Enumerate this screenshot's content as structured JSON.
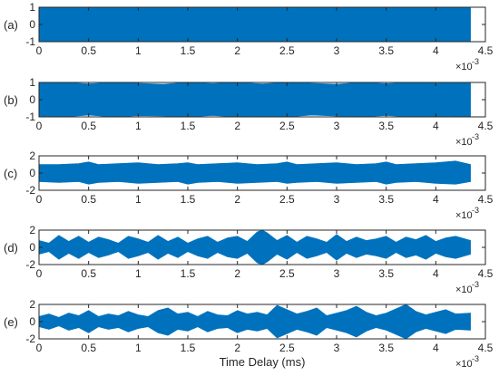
{
  "colors": {
    "signal": "#0072BD",
    "axis": "#262626",
    "background": "#ffffff"
  },
  "chart_data": {
    "type": "area",
    "xlabel": "Time Delay (ms)",
    "x_exponent_label": "×10",
    "x_exponent_power": "-3",
    "xlim": [
      0,
      4.5
    ],
    "x_ticks": [
      0,
      0.5,
      1,
      1.5,
      2,
      2.5,
      3,
      3.5,
      4,
      4.5
    ],
    "x_tick_labels": [
      "0",
      "0.5",
      "1",
      "1.5",
      "2",
      "2.5",
      "3",
      "3.5",
      "4",
      "4.5"
    ],
    "signal_end": 4.35,
    "panels": [
      {
        "label": "(a)",
        "ylim": [
          -1,
          1
        ],
        "y_ticks": [
          -1,
          0,
          1
        ],
        "y_tick_labels": [
          "-1",
          "0",
          "1"
        ],
        "envelope": {
          "x": [
            0,
            0.5,
            1,
            1.5,
            2,
            2.5,
            3,
            3.5,
            4,
            4.35
          ],
          "upper": [
            1,
            1,
            1,
            1,
            1,
            1,
            1,
            1,
            1,
            1
          ],
          "lower": [
            -1,
            -1,
            -1,
            -1,
            -1,
            -1,
            -1,
            -1,
            -1,
            -1
          ]
        }
      },
      {
        "label": "(b)",
        "ylim": [
          -1,
          1
        ],
        "y_ticks": [
          -1,
          0,
          1
        ],
        "y_tick_labels": [
          "-1",
          "0",
          "1"
        ],
        "envelope": {
          "x": [
            0,
            0.25,
            0.5,
            0.75,
            1,
            1.25,
            1.5,
            1.75,
            2,
            2.25,
            2.5,
            2.75,
            3,
            3.25,
            3.5,
            3.75,
            4,
            4.35
          ],
          "upper": [
            0.95,
            1.0,
            0.92,
            1.0,
            0.95,
            0.9,
            1.0,
            0.94,
            1.0,
            0.92,
            1.0,
            0.95,
            0.9,
            1.0,
            0.93,
            1.0,
            0.95,
            1.0
          ],
          "lower": [
            -0.95,
            -1.0,
            -0.9,
            -1.0,
            -0.93,
            -0.95,
            -1.0,
            -0.92,
            -1.0,
            -0.95,
            -1.0,
            -0.9,
            -0.95,
            -1.0,
            -0.92,
            -1.0,
            -0.95,
            -1.0
          ]
        }
      },
      {
        "label": "(c)",
        "ylim": [
          -2,
          2
        ],
        "y_ticks": [
          -2,
          0,
          2
        ],
        "y_tick_labels": [
          "-2",
          "0",
          "2"
        ],
        "envelope": {
          "x": [
            0,
            0.2,
            0.4,
            0.5,
            0.6,
            0.8,
            1,
            1.2,
            1.4,
            1.5,
            1.6,
            1.8,
            2,
            2.2,
            2.4,
            2.5,
            2.6,
            2.8,
            3,
            3.2,
            3.4,
            3.5,
            3.6,
            3.8,
            4,
            4.2,
            4.35
          ],
          "upper": [
            1.0,
            1.0,
            1.1,
            1.3,
            1.0,
            1.1,
            1.2,
            1.0,
            1.1,
            1.2,
            1.0,
            1.1,
            1.2,
            1.0,
            1.1,
            1.3,
            1.0,
            1.1,
            1.2,
            1.0,
            1.1,
            1.3,
            1.0,
            1.1,
            1.2,
            1.4,
            1.0
          ],
          "lower": [
            -1.0,
            -1.1,
            -1.0,
            -1.3,
            -1.1,
            -1.0,
            -1.2,
            -1.1,
            -1.0,
            -1.3,
            -1.1,
            -1.0,
            -1.2,
            -1.1,
            -1.0,
            -1.2,
            -1.1,
            -1.0,
            -1.2,
            -1.1,
            -1.0,
            -1.3,
            -1.1,
            -1.0,
            -1.2,
            -1.3,
            -1.0
          ]
        }
      },
      {
        "label": "(d)",
        "ylim": [
          -2,
          2
        ],
        "y_ticks": [
          -2,
          0,
          2
        ],
        "y_tick_labels": [
          "-2",
          "0",
          "2"
        ],
        "envelope": {
          "x": [
            0,
            0.1,
            0.2,
            0.3,
            0.4,
            0.5,
            0.6,
            0.7,
            0.8,
            0.9,
            1,
            1.1,
            1.2,
            1.3,
            1.4,
            1.5,
            1.6,
            1.7,
            1.8,
            1.9,
            2,
            2.1,
            2.2,
            2.25,
            2.3,
            2.4,
            2.5,
            2.6,
            2.7,
            2.8,
            2.9,
            3,
            3.1,
            3.2,
            3.3,
            3.4,
            3.5,
            3.6,
            3.7,
            3.8,
            3.9,
            4,
            4.1,
            4.2,
            4.35
          ],
          "upper": [
            0.8,
            0.5,
            1.4,
            0.7,
            1.3,
            0.6,
            1.2,
            0.9,
            0.5,
            1.3,
            1.0,
            0.6,
            1.4,
            0.7,
            1.2,
            0.5,
            1.0,
            1.3,
            0.6,
            1.1,
            1.3,
            0.7,
            1.8,
            2.0,
            1.7,
            0.8,
            1.4,
            0.6,
            1.3,
            1.0,
            0.6,
            1.5,
            0.7,
            1.2,
            0.8,
            1.0,
            1.3,
            0.6,
            1.2,
            0.9,
            1.4,
            0.7,
            1.1,
            1.3,
            0.8
          ],
          "lower": [
            -0.8,
            -0.5,
            -1.4,
            -0.7,
            -1.3,
            -0.6,
            -1.2,
            -0.9,
            -0.5,
            -1.3,
            -1.0,
            -0.6,
            -1.4,
            -0.7,
            -1.2,
            -0.5,
            -1.0,
            -1.3,
            -0.6,
            -1.1,
            -1.3,
            -0.7,
            -1.8,
            -2.0,
            -1.7,
            -0.8,
            -1.4,
            -0.6,
            -1.3,
            -1.0,
            -0.6,
            -1.5,
            -0.7,
            -1.2,
            -0.8,
            -1.0,
            -1.3,
            -0.6,
            -1.2,
            -0.9,
            -1.4,
            -0.7,
            -1.1,
            -1.3,
            -0.8
          ]
        }
      },
      {
        "label": "(e)",
        "ylim": [
          -2,
          2
        ],
        "y_ticks": [
          -2,
          0,
          2
        ],
        "y_tick_labels": [
          "-2",
          "0",
          "2"
        ],
        "envelope": {
          "x": [
            0,
            0.1,
            0.2,
            0.3,
            0.4,
            0.5,
            0.6,
            0.7,
            0.8,
            0.9,
            1,
            1.1,
            1.2,
            1.3,
            1.4,
            1.5,
            1.6,
            1.7,
            1.8,
            1.9,
            2,
            2.1,
            2.2,
            2.3,
            2.4,
            2.5,
            2.6,
            2.7,
            2.8,
            2.9,
            3,
            3.1,
            3.2,
            3.3,
            3.4,
            3.5,
            3.6,
            3.7,
            3.8,
            3.9,
            4,
            4.1,
            4.2,
            4.35
          ],
          "upper": [
            0.6,
            0.9,
            0.5,
            1.0,
            0.7,
            1.3,
            0.6,
            0.9,
            0.7,
            1.2,
            0.8,
            0.6,
            1.3,
            1.6,
            0.9,
            1.1,
            0.6,
            1.2,
            0.8,
            0.7,
            1.3,
            0.9,
            1.1,
            0.8,
            1.9,
            1.4,
            0.9,
            1.2,
            1.6,
            0.7,
            1.0,
            1.3,
            1.8,
            1.1,
            0.7,
            1.0,
            1.5,
            2.0,
            1.2,
            0.8,
            1.1,
            1.4,
            0.9,
            1.0
          ],
          "lower": [
            -0.6,
            -0.9,
            -0.5,
            -1.0,
            -0.7,
            -1.3,
            -0.6,
            -0.9,
            -0.7,
            -1.2,
            -0.8,
            -0.6,
            -1.3,
            -1.6,
            -0.9,
            -1.1,
            -0.6,
            -1.2,
            -0.8,
            -0.7,
            -1.3,
            -0.9,
            -1.1,
            -0.8,
            -1.9,
            -1.4,
            -0.9,
            -1.2,
            -1.6,
            -0.7,
            -1.0,
            -1.3,
            -1.8,
            -1.1,
            -0.7,
            -1.0,
            -1.5,
            -2.0,
            -1.2,
            -0.8,
            -1.1,
            -1.4,
            -0.9,
            -1.0
          ]
        }
      }
    ]
  }
}
